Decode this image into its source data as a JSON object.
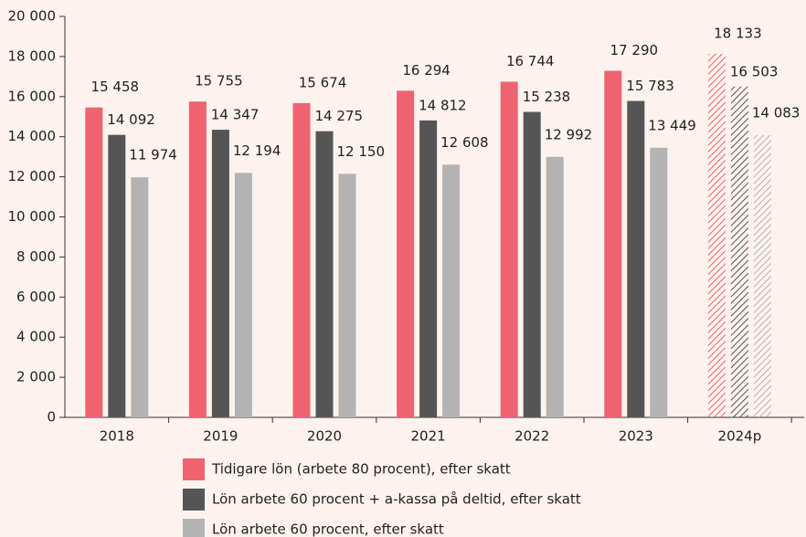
{
  "chart_data": {
    "type": "bar",
    "categories": [
      "2018",
      "2019",
      "2020",
      "2021",
      "2022",
      "2023",
      "2024p"
    ],
    "series": [
      {
        "name": "Tidigare lön (arbete 80 procent), efter skatt",
        "color": "#ee6370",
        "values": [
          15458,
          15755,
          15674,
          16294,
          16744,
          17290,
          18133
        ],
        "value_labels": [
          "15 458",
          "15 755",
          "15 674",
          "16 294",
          "16 744",
          "17 290",
          "18 133"
        ]
      },
      {
        "name": "Lön arbete 60 procent + a-kassa på deltid, efter skatt",
        "color": "#555555",
        "values": [
          14092,
          14347,
          14275,
          14812,
          15238,
          15783,
          16503
        ],
        "value_labels": [
          "14 092",
          "14 347",
          "14 275",
          "14 812",
          "15 238",
          "15 783",
          "16 503"
        ]
      },
      {
        "name": "Lön arbete 60 procent, efter skatt",
        "color": "#b3b3b3",
        "values": [
          11974,
          12194,
          12150,
          12608,
          12992,
          13449,
          14083
        ],
        "value_labels": [
          "11 974",
          "12 194",
          "12 150",
          "12 608",
          "12 992",
          "13 449",
          "14 083"
        ]
      }
    ],
    "ylim": [
      0,
      20000
    ],
    "yticks": [
      0,
      {
        "value": 2000,
        "label": "2 000"
      },
      {
        "value": 4000,
        "label": "4 000"
      },
      {
        "value": 6000,
        "label": "6 000"
      },
      {
        "value": 8000,
        "label": "8 000"
      },
      {
        "value": 10000,
        "label": "10 000"
      },
      {
        "value": 12000,
        "label": "12 000"
      },
      {
        "value": 14000,
        "label": "14 000"
      },
      {
        "value": 16000,
        "label": "16 000"
      },
      {
        "value": 18000,
        "label": "18 000"
      },
      {
        "value": 20000,
        "label": "20 000"
      }
    ],
    "hatched_index": 6,
    "grid": false
  }
}
